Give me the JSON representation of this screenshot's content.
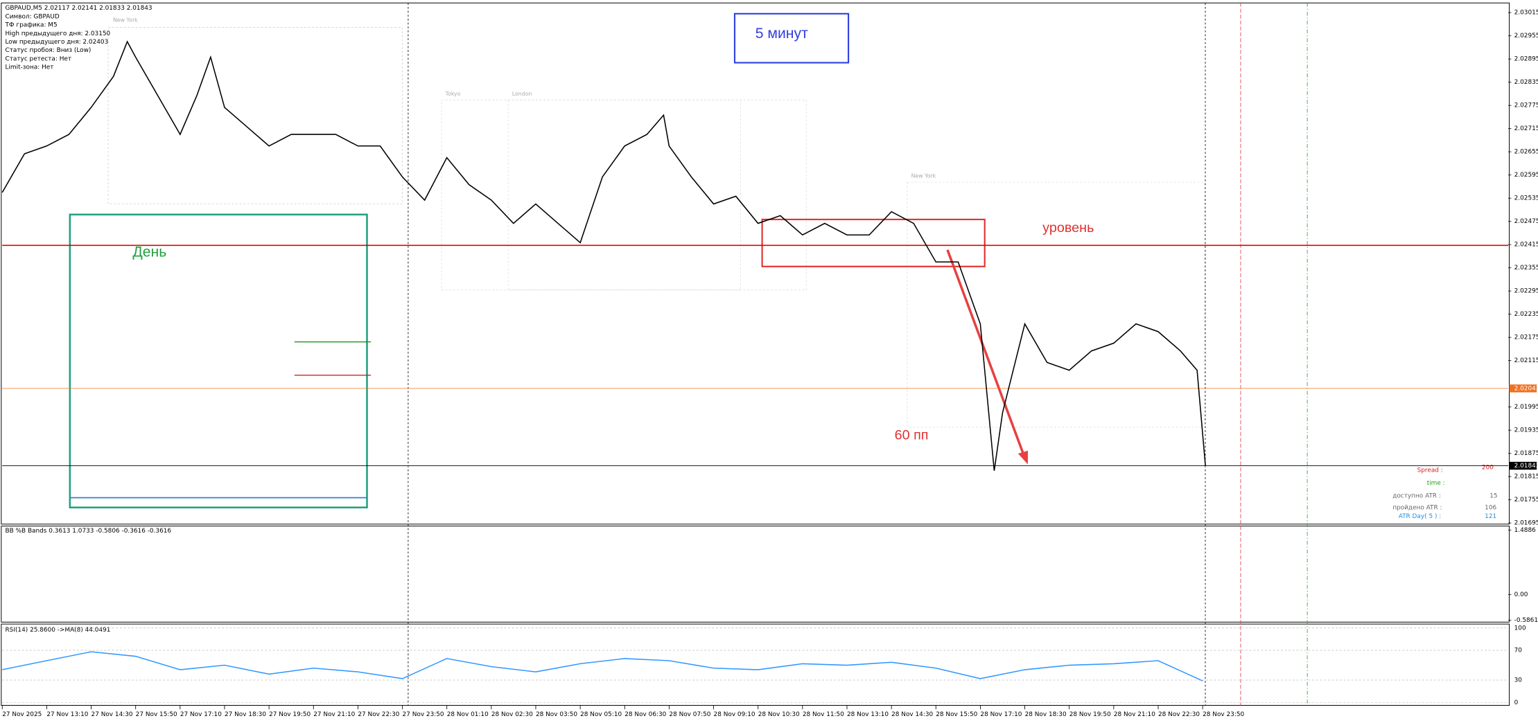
{
  "window": {
    "symbol_line": "GBPAUD,M5  2.02117 2.02141 2.01833 2.01843",
    "info": [
      "Символ: GBPAUD",
      "ТФ графика: M5",
      "High предыдущего дня: 2.03150",
      "Low предыдущего дня: 2.02403",
      "Статус пробоя: Вниз (Low)",
      "Статус ретеста: Нет",
      "Limit-зона: Нет"
    ]
  },
  "price_chart": {
    "type": "line",
    "color": "#000000",
    "x": [
      0,
      8,
      16,
      24,
      32,
      40,
      45,
      48,
      56,
      64,
      70,
      75,
      80,
      88,
      96,
      104,
      112,
      120,
      128,
      136,
      144,
      152,
      160,
      168,
      176,
      184,
      192,
      200,
      208,
      216,
      224,
      232,
      238,
      240,
      248,
      256,
      264,
      272,
      280,
      288,
      296,
      304,
      312,
      320,
      328,
      336,
      344,
      352,
      357,
      360,
      368,
      376,
      384,
      392,
      400,
      408,
      416,
      424,
      430,
      433
    ],
    "values": [
      2.0255,
      2.0265,
      2.0267,
      2.027,
      2.0277,
      2.0285,
      2.0294,
      2.029,
      2.028,
      2.027,
      2.028,
      2.029,
      2.0277,
      2.0272,
      2.0267,
      2.027,
      2.027,
      2.027,
      2.0267,
      2.0267,
      2.0259,
      2.0253,
      2.0264,
      2.0257,
      2.0253,
      2.0247,
      2.0252,
      2.0247,
      2.0242,
      2.0259,
      2.0267,
      2.027,
      2.0275,
      2.0267,
      2.0259,
      2.0252,
      2.0254,
      2.0247,
      2.0249,
      2.0244,
      2.0247,
      2.0244,
      2.0244,
      2.025,
      2.0247,
      2.0237,
      2.0237,
      2.0221,
      2.0183,
      2.0198,
      2.0221,
      2.0211,
      2.0209,
      2.0214,
      2.0216,
      2.0221,
      2.0219,
      2.0214,
      2.0209,
      2.01843
    ],
    "xlim": [
      0,
      542
    ],
    "ylim": [
      2.01692,
      2.0304
    ],
    "yticks": [
      2.03015,
      2.02955,
      2.02895,
      2.02835,
      2.02775,
      2.02715,
      2.02655,
      2.02595,
      2.02535,
      2.02475,
      2.02415,
      2.02355,
      2.02295,
      2.02235,
      2.02175,
      2.02115,
      2.01995,
      2.01935,
      2.01875,
      2.01815,
      2.01755,
      2.01695
    ],
    "xticks": [
      {
        "value": 0,
        "label": "27 Nov 2025"
      },
      {
        "value": 16,
        "label": "27 Nov 13:10"
      },
      {
        "value": 32,
        "label": "27 Nov 14:30"
      },
      {
        "value": 48,
        "label": "27 Nov 15:50"
      },
      {
        "value": 64,
        "label": "27 Nov 17:10"
      },
      {
        "value": 80,
        "label": "27 Nov 18:30"
      },
      {
        "value": 96,
        "label": "27 Nov 19:50"
      },
      {
        "value": 112,
        "label": "27 Nov 21:10"
      },
      {
        "value": 128,
        "label": "27 Nov 22:30"
      },
      {
        "value": 144,
        "label": "27 Nov 23:50"
      },
      {
        "value": 160,
        "label": "28 Nov 01:10"
      },
      {
        "value": 176,
        "label": "28 Nov 02:30"
      },
      {
        "value": 192,
        "label": "28 Nov 03:50"
      },
      {
        "value": 208,
        "label": "28 Nov 05:10"
      },
      {
        "value": 224,
        "label": "28 Nov 06:30"
      },
      {
        "value": 240,
        "label": "28 Nov 07:50"
      },
      {
        "value": 256,
        "label": "28 Nov 09:10"
      },
      {
        "value": 272,
        "label": "28 Nov 10:30"
      },
      {
        "value": 288,
        "label": "28 Nov 11:50"
      },
      {
        "value": 304,
        "label": "28 Nov 13:10"
      },
      {
        "value": 320,
        "label": "28 Nov 14:30"
      },
      {
        "value": 336,
        "label": "28 Nov 15:50"
      },
      {
        "value": 352,
        "label": "28 Nov 17:10"
      },
      {
        "value": 368,
        "label": "28 Nov 18:30"
      },
      {
        "value": 384,
        "label": "28 Nov 19:50"
      },
      {
        "value": 400,
        "label": "28 Nov 21:10"
      },
      {
        "value": 416,
        "label": "28 Nov 22:30"
      },
      {
        "value": 432,
        "label": "28 Nov 23:50"
      }
    ],
    "level_line": {
      "value": 2.02413,
      "color": "#e00000"
    },
    "price_tags": [
      {
        "value": 2.02043,
        "color": "#f07020"
      },
      {
        "value": 2.01843,
        "color": "#000000"
      }
    ],
    "sessions": [
      "New York",
      "Tokyo",
      "London",
      "New York"
    ]
  },
  "annotations": {
    "title_box": "5 минут",
    "day_box": "День",
    "level": "уровень",
    "pips": "60 пп"
  },
  "stats": {
    "spread_label": "Spread :",
    "spread": 200,
    "time_label": "time :",
    "atr_avail_label": "доступно ATR :",
    "atr_avail": 15,
    "atr_done_label": "пройдено ATR :",
    "atr_done": 106,
    "atr_day_label": "ATR Day( 5 ) :",
    "atr_day": 121
  },
  "bb_panel": {
    "header": "BB %B Bands 0.3613 1.0733 -0.5806 -0.3616 -0.3616",
    "ylim": [
      -0.632,
      1.579
    ],
    "yticks": [
      1.4886,
      {
        "value": 0,
        "label": "0.00"
      },
      -0.5861
    ]
  },
  "rsi_panel": {
    "header": "RSI(14) 25.8600  ->MA(8) 44.0491",
    "type": "line",
    "color": "#3399ff",
    "x": [
      0,
      16,
      32,
      48,
      64,
      80,
      96,
      112,
      128,
      144,
      160,
      176,
      192,
      208,
      224,
      240,
      256,
      272,
      288,
      304,
      320,
      336,
      352,
      368,
      384,
      400,
      416,
      432
    ],
    "values": [
      44,
      56,
      68,
      62,
      44,
      50,
      38,
      46,
      41,
      32,
      59,
      48,
      41,
      52,
      59,
      56,
      46,
      44,
      52,
      50,
      54,
      46,
      32,
      44,
      50,
      52,
      56,
      29
    ],
    "ylim": [
      0,
      100
    ],
    "yticks": [
      100,
      70,
      30,
      0
    ]
  }
}
